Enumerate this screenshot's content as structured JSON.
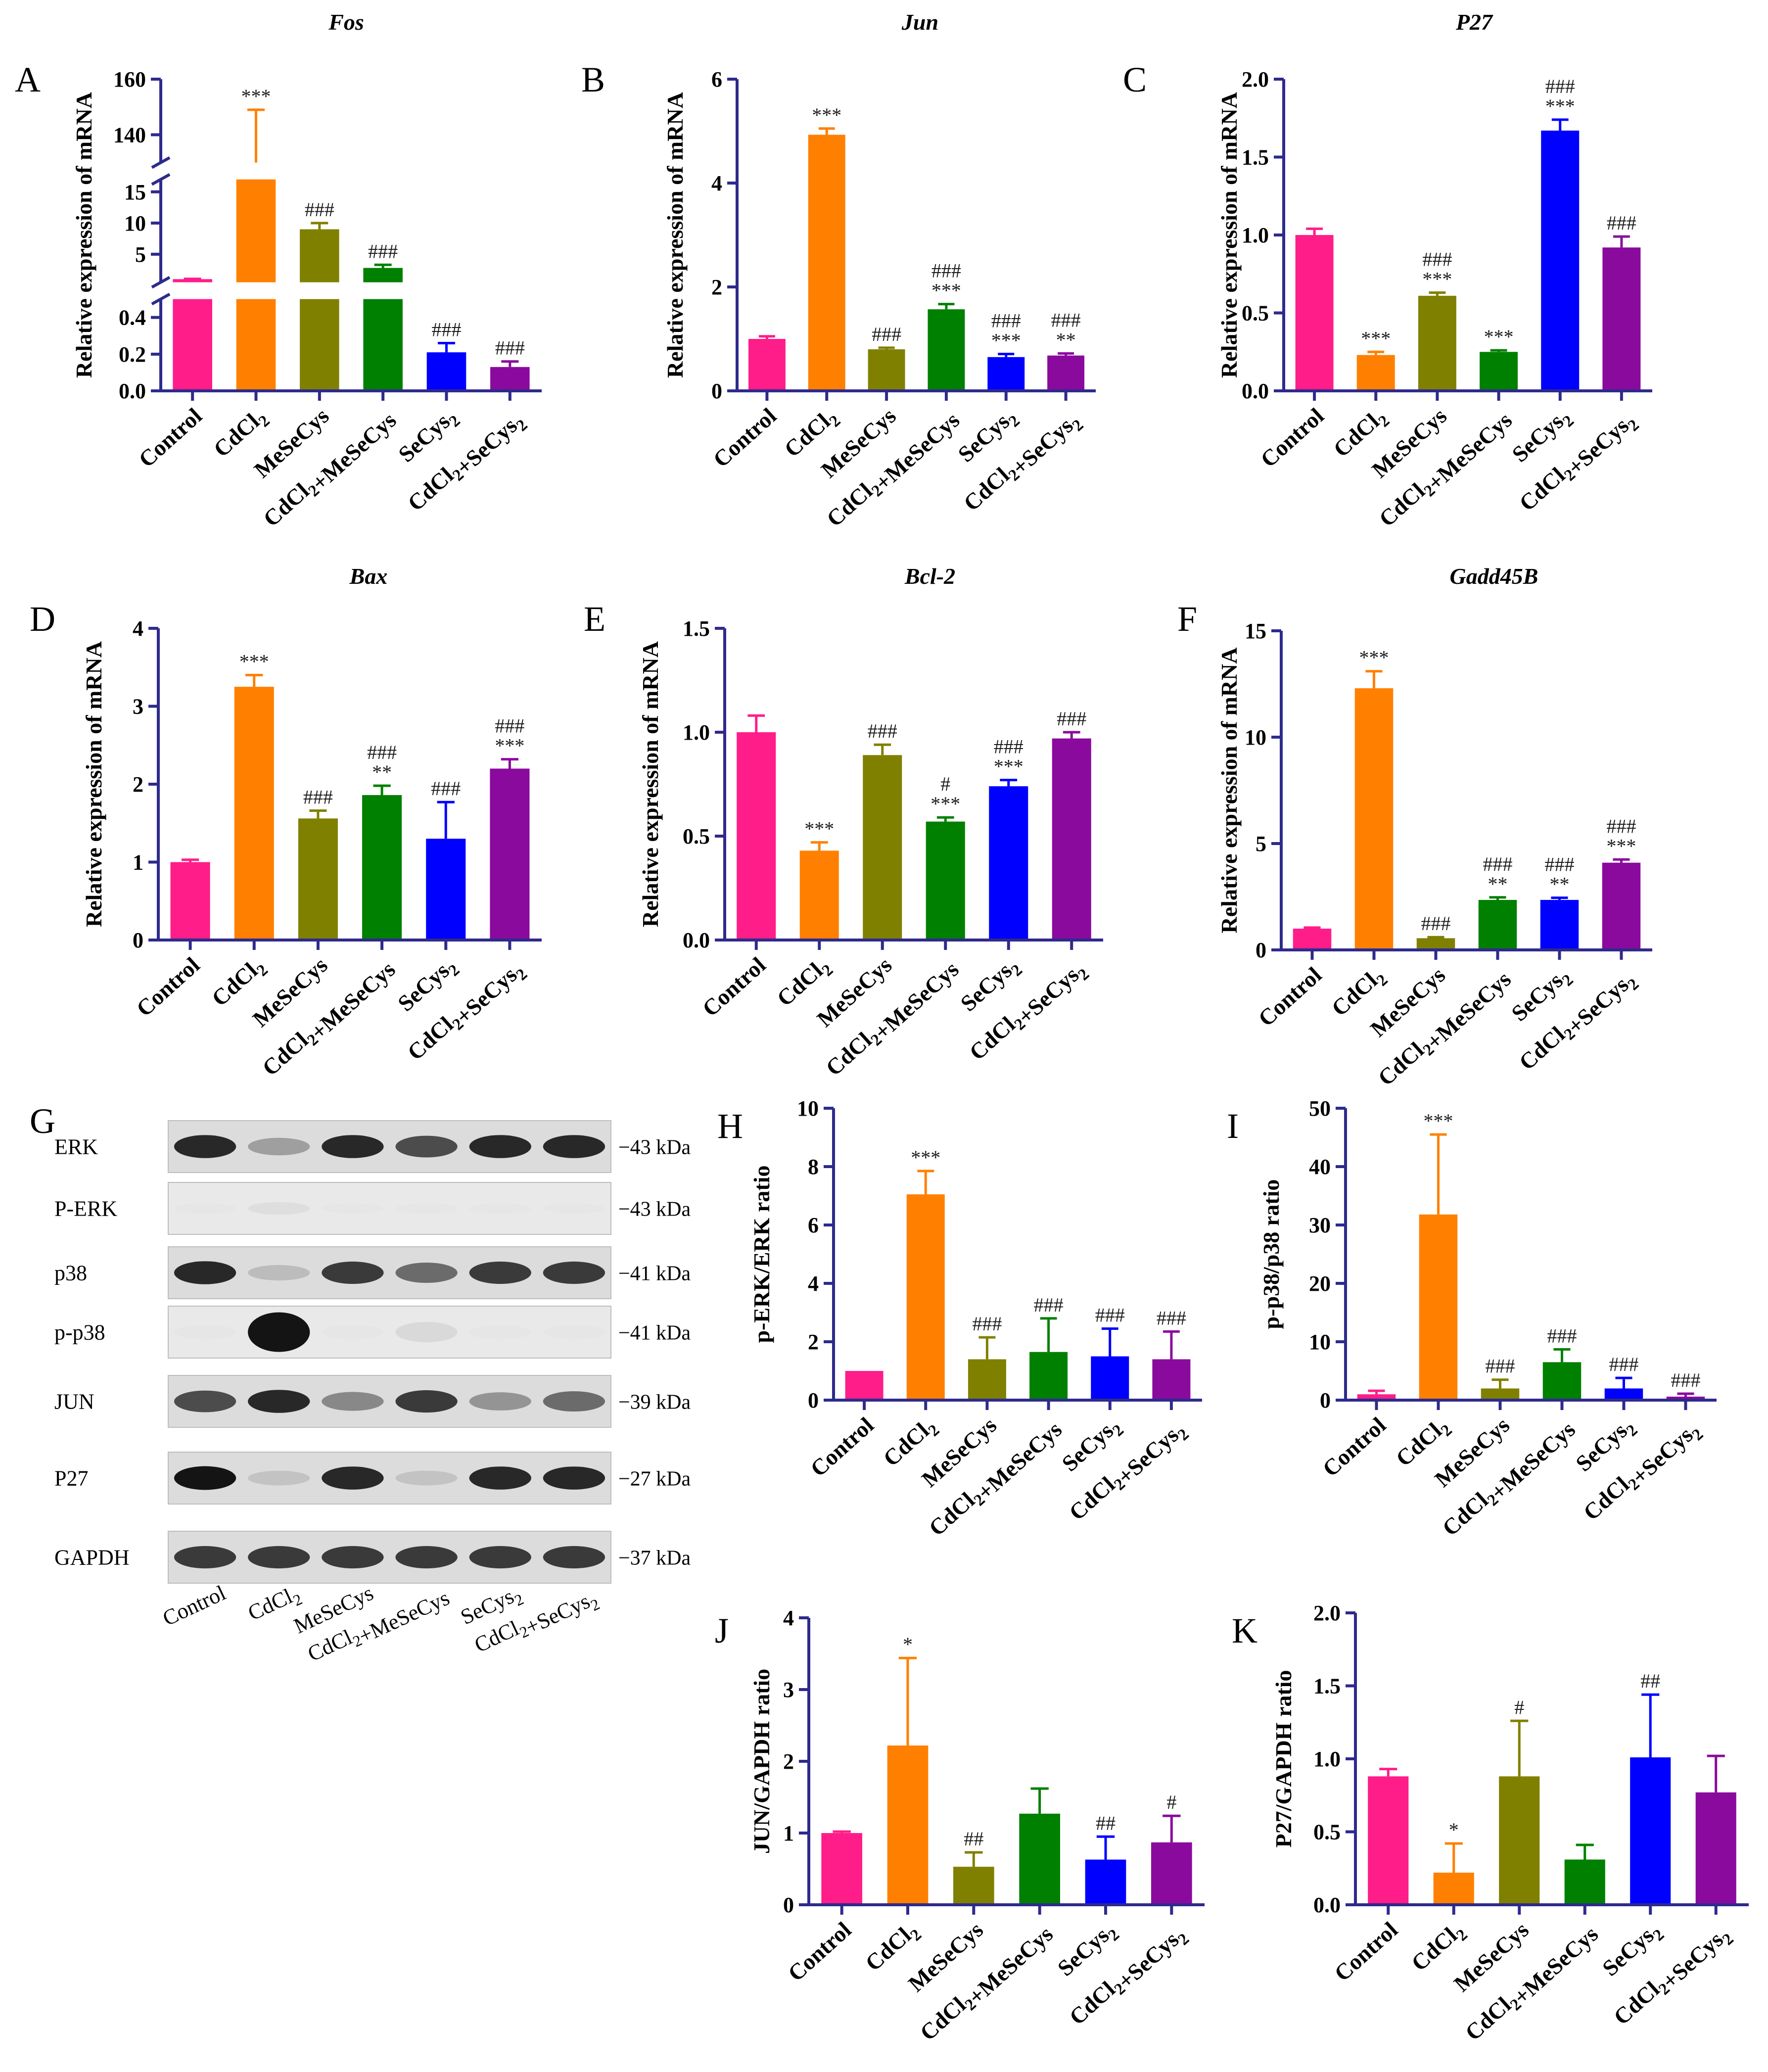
{
  "groups": [
    "Control",
    "CdCl2",
    "MeSeCys",
    "CdCl2+MeSeCys",
    "SeCys2",
    "CdCl2+SeCys2"
  ],
  "colors": [
    "#FF1D8A",
    "#FF8000",
    "#808000",
    "#008000",
    "#0000FF",
    "#8B0A9E"
  ],
  "axis_color": "#2E2A8C",
  "chart_data": [
    {
      "id": "A",
      "type": "bar",
      "title": "Fos",
      "ylabel": "Relative expression of mRNA",
      "categories": [
        "Control",
        "CdCl2",
        "MeSeCys",
        "CdCl2+MeSeCys",
        "SeCys2",
        "CdCl2+SeCys2"
      ],
      "values": [
        1.0,
        130,
        9.0,
        2.8,
        0.21,
        0.13
      ],
      "errors": [
        0.05,
        19,
        1.0,
        0.5,
        0.05,
        0.03
      ],
      "significance": [
        "",
        "***",
        "###",
        "###",
        "###",
        "###"
      ],
      "broken_axis": true,
      "segments": [
        {
          "range": [
            0,
            0.5
          ],
          "ticks": [
            0.0,
            0.2,
            0.4
          ]
        },
        {
          "range": [
            0.5,
            17
          ],
          "ticks": [
            5,
            10,
            15
          ]
        },
        {
          "range": [
            130,
            160
          ],
          "ticks": [
            140,
            160
          ]
        }
      ]
    },
    {
      "id": "B",
      "type": "bar",
      "title": "Jun",
      "ylabel": "Relative expression of mRNA",
      "categories": [
        "Control",
        "CdCl2",
        "MeSeCys",
        "CdCl2+MeSeCys",
        "SeCys2",
        "CdCl2+SeCys2"
      ],
      "values": [
        1.0,
        4.93,
        0.8,
        1.57,
        0.65,
        0.68
      ],
      "errors": [
        0.05,
        0.12,
        0.03,
        0.1,
        0.06,
        0.04
      ],
      "significance": [
        "",
        "***",
        "###",
        "###\n***",
        "###\n***",
        "###\n**"
      ],
      "ylim": [
        0,
        6
      ],
      "ticks": [
        0,
        2,
        4,
        6
      ]
    },
    {
      "id": "C",
      "type": "bar",
      "title": "P27",
      "ylabel": "Relative expression of mRNA",
      "categories": [
        "Control",
        "CdCl2",
        "MeSeCys",
        "CdCl2+MeSeCys",
        "SeCys2",
        "CdCl2+SeCys2"
      ],
      "values": [
        1.0,
        0.23,
        0.61,
        0.25,
        1.67,
        0.92
      ],
      "errors": [
        0.04,
        0.02,
        0.02,
        0.01,
        0.07,
        0.07
      ],
      "significance": [
        "",
        "***",
        "###\n***",
        "***",
        "###\n***",
        "###"
      ],
      "ylim": [
        0,
        2.0
      ],
      "ticks": [
        0.0,
        0.5,
        1.0,
        1.5,
        2.0
      ]
    },
    {
      "id": "D",
      "type": "bar",
      "title": "Bax",
      "ylabel": "Relative expression of mRNA",
      "categories": [
        "Control",
        "CdCl2",
        "MeSeCys",
        "CdCl2+MeSeCys",
        "SeCys2",
        "CdCl2+SeCys2"
      ],
      "values": [
        1.0,
        3.25,
        1.56,
        1.86,
        1.3,
        2.2
      ],
      "errors": [
        0.03,
        0.15,
        0.1,
        0.12,
        0.47,
        0.12
      ],
      "significance": [
        "",
        "***",
        "###",
        "###\n**",
        "###",
        "###\n***"
      ],
      "ylim": [
        0,
        4
      ],
      "ticks": [
        0,
        1,
        2,
        3,
        4
      ]
    },
    {
      "id": "E",
      "type": "bar",
      "title": "Bcl-2",
      "ylabel": "Relative expression of mRNA",
      "categories": [
        "Control",
        "CdCl2",
        "MeSeCys",
        "CdCl2+MeSeCys",
        "SeCys2",
        "CdCl2+SeCys2"
      ],
      "values": [
        1.0,
        0.43,
        0.89,
        0.57,
        0.74,
        0.97
      ],
      "errors": [
        0.08,
        0.04,
        0.05,
        0.02,
        0.03,
        0.03
      ],
      "significance": [
        "",
        "***",
        "###",
        "#\n***",
        "###\n***",
        "###"
      ],
      "ylim": [
        0,
        1.5
      ],
      "ticks": [
        0.0,
        0.5,
        1.0,
        1.5
      ]
    },
    {
      "id": "F",
      "type": "bar",
      "title": "Gadd45B",
      "ylabel": "Relative expression of mRNA",
      "categories": [
        "Control",
        "CdCl2",
        "MeSeCys",
        "CdCl2+MeSeCys",
        "SeCys2",
        "CdCl2+SeCys2"
      ],
      "values": [
        1.0,
        12.3,
        0.55,
        2.35,
        2.35,
        4.1
      ],
      "errors": [
        0.05,
        0.8,
        0.05,
        0.12,
        0.1,
        0.15
      ],
      "significance": [
        "",
        "***",
        "###",
        "###\n**",
        "###\n**",
        "###\n***"
      ],
      "ylim": [
        0,
        15
      ],
      "ticks": [
        0,
        5,
        10,
        15
      ]
    },
    {
      "id": "H",
      "type": "bar",
      "title": "",
      "ylabel": "p-ERK/ERK ratio",
      "categories": [
        "Control",
        "CdCl2",
        "MeSeCys",
        "CdCl2+MeSeCys",
        "SeCys2",
        "CdCl2+SeCys2"
      ],
      "values": [
        1.0,
        7.05,
        1.4,
        1.65,
        1.5,
        1.4
      ],
      "errors": [
        0.0,
        0.8,
        0.75,
        1.15,
        0.95,
        0.95
      ],
      "significance": [
        "",
        "***",
        "###",
        "###",
        "###",
        "###"
      ],
      "ylim": [
        0,
        10
      ],
      "ticks": [
        0,
        2,
        4,
        6,
        8,
        10
      ]
    },
    {
      "id": "I",
      "type": "bar",
      "title": "",
      "ylabel": "p-p38/p38 ratio",
      "categories": [
        "Control",
        "CdCl2",
        "MeSeCys",
        "CdCl2+MeSeCys",
        "SeCys2",
        "CdCl2+SeCys2"
      ],
      "values": [
        1.0,
        31.8,
        2.0,
        6.5,
        2.0,
        0.6
      ],
      "errors": [
        0.6,
        13.7,
        1.5,
        2.2,
        1.8,
        0.5
      ],
      "significance": [
        "",
        "***",
        "###",
        "###",
        "###",
        "###"
      ],
      "ylim": [
        0,
        50
      ],
      "ticks": [
        0,
        10,
        20,
        30,
        40,
        50
      ]
    },
    {
      "id": "J",
      "type": "bar",
      "title": "",
      "ylabel": "JUN/GAPDH ratio",
      "categories": [
        "Control",
        "CdCl2",
        "MeSeCys",
        "CdCl2+MeSeCys",
        "SeCys2",
        "CdCl2+SeCys2"
      ],
      "values": [
        1.0,
        2.22,
        0.53,
        1.27,
        0.63,
        0.87
      ],
      "errors": [
        0.02,
        1.22,
        0.2,
        0.35,
        0.32,
        0.37
      ],
      "significance": [
        "",
        "*",
        "##",
        "",
        "##",
        "#"
      ],
      "ylim": [
        0,
        4
      ],
      "ticks": [
        0,
        1,
        2,
        3,
        4
      ]
    },
    {
      "id": "K",
      "type": "bar",
      "title": "",
      "ylabel": "P27/GAPDH ratio",
      "categories": [
        "Control",
        "CdCl2",
        "MeSeCys",
        "CdCl2+MeSeCys",
        "SeCys2",
        "CdCl2+SeCys2"
      ],
      "values": [
        0.88,
        0.22,
        0.88,
        0.31,
        1.01,
        0.77
      ],
      "errors": [
        0.05,
        0.2,
        0.38,
        0.1,
        0.43,
        0.25
      ],
      "significance": [
        "",
        "*",
        "#",
        "",
        "##",
        ""
      ],
      "ylim": [
        0,
        2.0
      ],
      "ticks": [
        0.0,
        0.5,
        1.0,
        1.5,
        2.0
      ]
    }
  ],
  "western_blot": {
    "panel_label": "G",
    "rows": [
      {
        "protein": "ERK",
        "kda": "43 kDa",
        "intensity": [
          0.95,
          0.55,
          0.95,
          0.85,
          0.95,
          0.95
        ]
      },
      {
        "protein": "P-ERK",
        "kda": "43 kDa",
        "intensity": [
          0.04,
          0.2,
          0.02,
          0.02,
          0.02,
          0.02
        ]
      },
      {
        "protein": "p38",
        "kda": "41 kDa",
        "intensity": [
          0.95,
          0.4,
          0.9,
          0.75,
          0.9,
          0.9
        ]
      },
      {
        "protein": "p-p38",
        "kda": "41 kDa",
        "intensity": [
          0.02,
          1.0,
          0.02,
          0.25,
          0.02,
          0.02
        ]
      },
      {
        "protein": "JUN",
        "kda": "39 kDa",
        "intensity": [
          0.85,
          0.95,
          0.65,
          0.9,
          0.6,
          0.75
        ]
      },
      {
        "protein": "P27",
        "kda": "27 kDa",
        "intensity": [
          1.0,
          0.35,
          0.95,
          0.35,
          0.95,
          0.95
        ]
      },
      {
        "protein": "GAPDH",
        "kda": "37 kDa",
        "intensity": [
          0.9,
          0.9,
          0.9,
          0.9,
          0.9,
          0.9
        ]
      }
    ]
  }
}
